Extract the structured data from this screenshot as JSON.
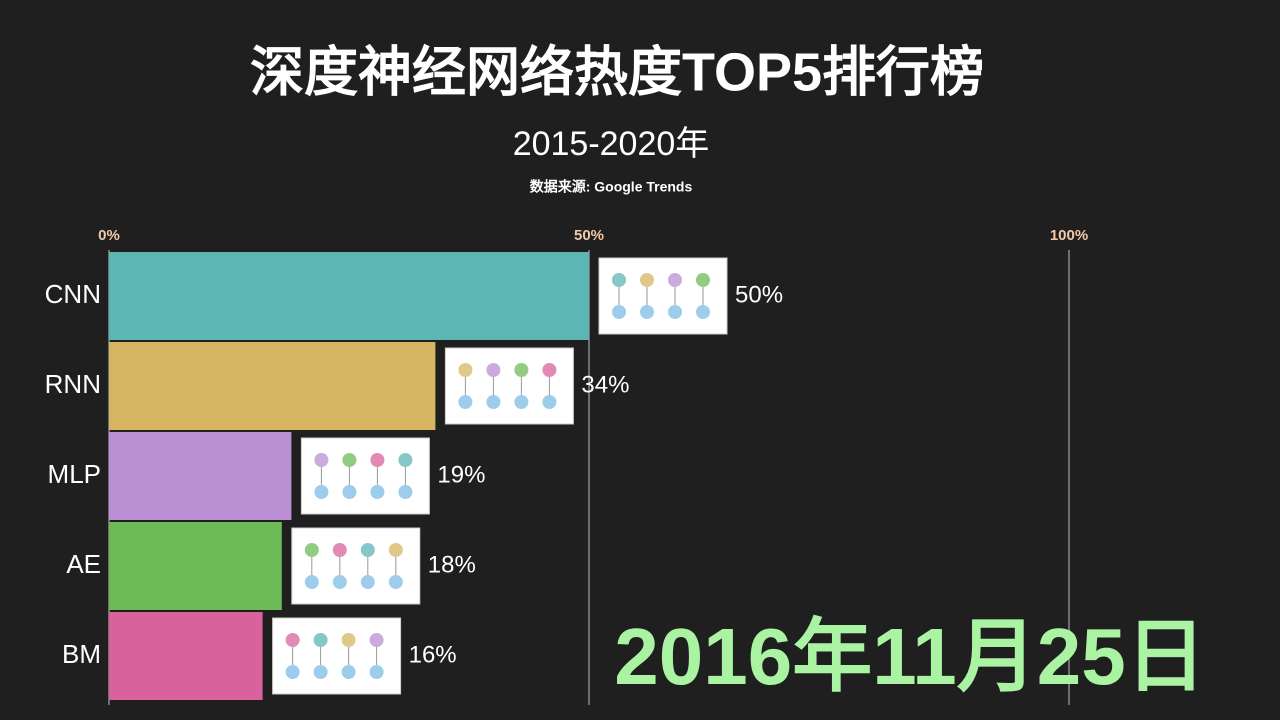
{
  "chart_data": {
    "type": "bar",
    "orientation": "horizontal",
    "title": "深度神经网络热度TOP5排行榜",
    "subtitle": "2015-2020年",
    "source": "数据来源: Google Trends",
    "annotation": "2016年11月25日",
    "categories": [
      "CNN",
      "RNN",
      "MLP",
      "AE",
      "BM"
    ],
    "values": [
      50,
      34,
      19,
      18,
      16
    ],
    "value_labels": [
      "50%",
      "34%",
      "19%",
      "18%",
      "16%"
    ],
    "colors": [
      "#5cb6b4",
      "#d6b562",
      "#b98ed2",
      "#6dbb57",
      "#d9629c"
    ],
    "xlim": [
      0,
      100
    ],
    "xticks": [
      {
        "value": 0,
        "label": "0%"
      },
      {
        "value": 50,
        "label": "50%"
      },
      {
        "value": 100,
        "label": "100%"
      }
    ],
    "grid": true
  }
}
